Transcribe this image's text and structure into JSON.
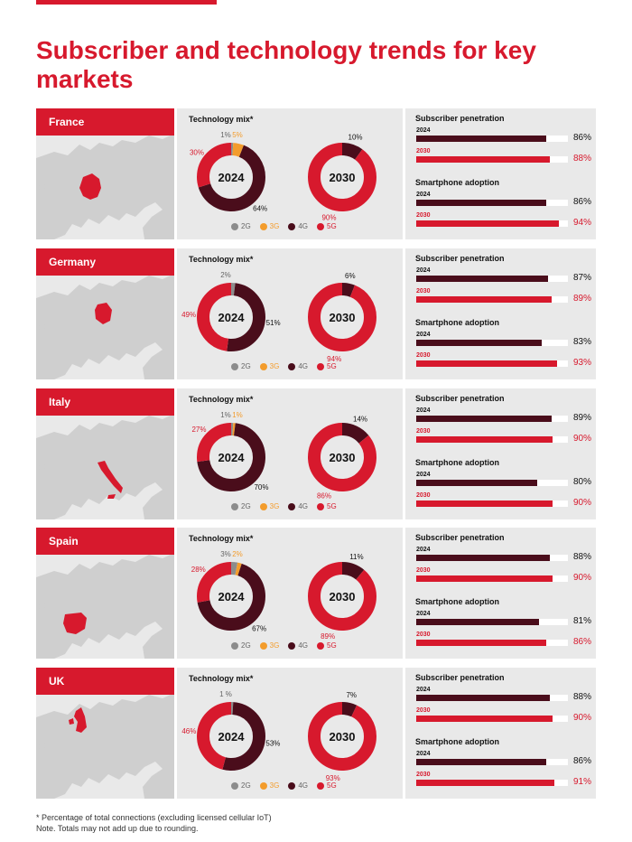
{
  "title": "Subscriber and technology trends for key markets",
  "tech_mix_label": "Technology mix*",
  "legend": [
    {
      "label": "2G",
      "color": "#8c8c8c"
    },
    {
      "label": "3G",
      "color": "#f39c2c"
    },
    {
      "label": "4G",
      "color": "#4a0d1b"
    },
    {
      "label": "5G",
      "color": "#d7192d"
    }
  ],
  "colors": {
    "accent": "#d7192d",
    "dark": "#4a0d1b",
    "orange": "#f39c2c",
    "grey": "#8c8c8c",
    "panel": "#e9e9e9"
  },
  "footnote": [
    "* Percentage of total connections (excluding licensed cellular IoT)",
    "Note. Totals may not add up due to rounding."
  ],
  "chart_data": [
    {
      "country": "France",
      "type": "pie",
      "technology_mix": {
        "2024": {
          "center_label": "2024",
          "segments": [
            {
              "name": "2G",
              "value": 1,
              "label": "1%"
            },
            {
              "name": "3G",
              "value": 5,
              "label": "5%"
            },
            {
              "name": "4G",
              "value": 64,
              "label": "64%"
            },
            {
              "name": "5G",
              "value": 30,
              "label": "30%"
            }
          ]
        },
        "2030": {
          "center_label": "2030",
          "segments": [
            {
              "name": "4G",
              "value": 10,
              "label": "10%"
            },
            {
              "name": "5G",
              "value": 90,
              "label": "90%"
            }
          ]
        }
      },
      "bars": [
        {
          "title": "Subscriber penetration",
          "rows": [
            {
              "year": "2024",
              "value": 86,
              "label": "86%"
            },
            {
              "year": "2030",
              "value": 88,
              "label": "88%"
            }
          ]
        },
        {
          "title": "Smartphone adoption",
          "rows": [
            {
              "year": "2024",
              "value": 86,
              "label": "86%"
            },
            {
              "year": "2030",
              "value": 94,
              "label": "94%"
            }
          ]
        }
      ]
    },
    {
      "country": "Germany",
      "type": "pie",
      "technology_mix": {
        "2024": {
          "center_label": "2024",
          "segments": [
            {
              "name": "2G",
              "value": 2,
              "label": "2%"
            },
            {
              "name": "4G",
              "value": 51,
              "label": "51%"
            },
            {
              "name": "5G",
              "value": 49,
              "label": "49%"
            }
          ]
        },
        "2030": {
          "center_label": "2030",
          "segments": [
            {
              "name": "4G",
              "value": 6,
              "label": "6%"
            },
            {
              "name": "5G",
              "value": 94,
              "label": "94%"
            }
          ]
        }
      },
      "bars": [
        {
          "title": "Subscriber penetration",
          "rows": [
            {
              "year": "2024",
              "value": 87,
              "label": "87%"
            },
            {
              "year": "2030",
              "value": 89,
              "label": "89%"
            }
          ]
        },
        {
          "title": "Smartphone adoption",
          "rows": [
            {
              "year": "2024",
              "value": 83,
              "label": "83%"
            },
            {
              "year": "2030",
              "value": 93,
              "label": "93%"
            }
          ]
        }
      ]
    },
    {
      "country": "Italy",
      "type": "pie",
      "technology_mix": {
        "2024": {
          "center_label": "2024",
          "segments": [
            {
              "name": "2G",
              "value": 1,
              "label": "1%"
            },
            {
              "name": "3G",
              "value": 1,
              "label": "1%"
            },
            {
              "name": "4G",
              "value": 70,
              "label": "70%"
            },
            {
              "name": "5G",
              "value": 27,
              "label": "27%"
            }
          ]
        },
        "2030": {
          "center_label": "2030",
          "segments": [
            {
              "name": "4G",
              "value": 14,
              "label": "14%"
            },
            {
              "name": "5G",
              "value": 86,
              "label": "86%"
            }
          ]
        }
      },
      "bars": [
        {
          "title": "Subscriber penetration",
          "rows": [
            {
              "year": "2024",
              "value": 89,
              "label": "89%"
            },
            {
              "year": "2030",
              "value": 90,
              "label": "90%"
            }
          ]
        },
        {
          "title": "Smartphone adoption",
          "rows": [
            {
              "year": "2024",
              "value": 80,
              "label": "80%"
            },
            {
              "year": "2030",
              "value": 90,
              "label": "90%"
            }
          ]
        }
      ]
    },
    {
      "country": "Spain",
      "type": "pie",
      "technology_mix": {
        "2024": {
          "center_label": "2024",
          "segments": [
            {
              "name": "2G",
              "value": 3,
              "label": "3%"
            },
            {
              "name": "3G",
              "value": 2,
              "label": "2%"
            },
            {
              "name": "4G",
              "value": 67,
              "label": "67%"
            },
            {
              "name": "5G",
              "value": 28,
              "label": "28%"
            }
          ]
        },
        "2030": {
          "center_label": "2030",
          "segments": [
            {
              "name": "4G",
              "value": 11,
              "label": "11%"
            },
            {
              "name": "5G",
              "value": 89,
              "label": "89%"
            }
          ]
        }
      },
      "bars": [
        {
          "title": "Subscriber penetration",
          "rows": [
            {
              "year": "2024",
              "value": 88,
              "label": "88%"
            },
            {
              "year": "2030",
              "value": 90,
              "label": "90%"
            }
          ]
        },
        {
          "title": "Smartphone adoption",
          "rows": [
            {
              "year": "2024",
              "value": 81,
              "label": "81%"
            },
            {
              "year": "2030",
              "value": 86,
              "label": "86%"
            }
          ]
        }
      ]
    },
    {
      "country": "UK",
      "type": "pie",
      "technology_mix": {
        "2024": {
          "center_label": "2024",
          "segments": [
            {
              "name": "2G",
              "value": 1,
              "label": "1 %"
            },
            {
              "name": "4G",
              "value": 53,
              "label": "53%"
            },
            {
              "name": "5G",
              "value": 46,
              "label": "46%"
            }
          ]
        },
        "2030": {
          "center_label": "2030",
          "segments": [
            {
              "name": "4G",
              "value": 7,
              "label": "7%"
            },
            {
              "name": "5G",
              "value": 93,
              "label": "93%"
            }
          ]
        }
      },
      "bars": [
        {
          "title": "Subscriber penetration",
          "rows": [
            {
              "year": "2024",
              "value": 88,
              "label": "88%"
            },
            {
              "year": "2030",
              "value": 90,
              "label": "90%"
            }
          ]
        },
        {
          "title": "Smartphone adoption",
          "rows": [
            {
              "year": "2024",
              "value": 86,
              "label": "86%"
            },
            {
              "year": "2030",
              "value": 91,
              "label": "91%"
            }
          ]
        }
      ]
    }
  ]
}
